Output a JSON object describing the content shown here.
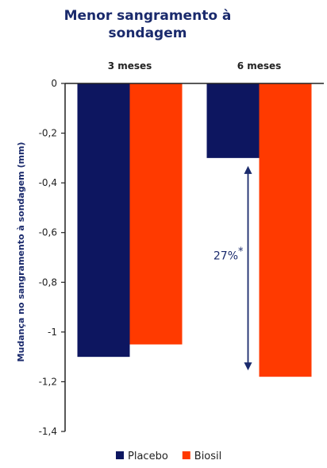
{
  "chart_data": {
    "type": "bar",
    "title": "Menor sangramento à sondagem",
    "title_lines": [
      "Menor sangramento à",
      "sondagem"
    ],
    "ylabel": "Mudança no sangramento à sondagem (mm)",
    "categories": [
      "3 meses",
      "6 meses"
    ],
    "series": [
      {
        "name": "Placebo",
        "color": "#0d1660",
        "values": [
          -1.1,
          -0.3
        ]
      },
      {
        "name": "Biosil",
        "color": "#ff3a00",
        "values": [
          -1.05,
          -1.18
        ]
      }
    ],
    "ylim": [
      -1.4,
      0
    ],
    "yticks": [
      0,
      -0.2,
      -0.4,
      -0.6,
      -0.8,
      -1,
      -1.2,
      -1.4
    ],
    "ytick_labels": [
      "0",
      "-0,2",
      "-0,4",
      "-0,6",
      "-0,8",
      "-1",
      "-1,2",
      "-1,4"
    ],
    "category_label_position": "top",
    "grid": false,
    "legend_position": "bottom-center",
    "annotation": {
      "text": "27%",
      "marker": "*",
      "category": "6 meses",
      "from": -0.3,
      "to": -1.18,
      "color": "#1a2a6c"
    }
  }
}
